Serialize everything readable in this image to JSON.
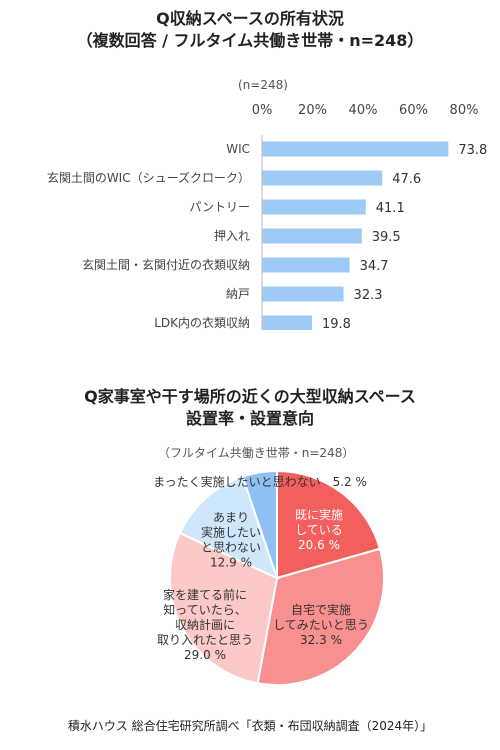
{
  "bar_chart": {
    "title_line1": "Q収納スペースの所有状況",
    "title_line2": "（複数回答 / フルタイム共働き世帯・n=248）",
    "n_note": "(n=248)"
  },
  "pie_chart": {
    "title_line1": "Q家事室や干す場所の近くの大型収納スペース",
    "title_line2": "設置率・設置意向",
    "n_note": "（フルタイム共働き世帯・n=248）"
  },
  "footer": "積水ハウス 総合住宅研究所調べ「衣類・布団収納調査（2024年）」",
  "chart_data": [
    {
      "type": "bar",
      "orientation": "horizontal",
      "categories": [
        "WIC",
        "玄関土間のWIC（シューズクローク）",
        "パントリー",
        "押入れ",
        "玄関土間・玄関付近の衣類収納",
        "納戸",
        "LDK内の衣類収納"
      ],
      "values": [
        73.8,
        47.6,
        41.1,
        39.5,
        34.7,
        32.3,
        19.8
      ],
      "value_labels": [
        "73.8",
        "47.6",
        "41.1",
        "39.5",
        "34.7",
        "32.3",
        "19.8"
      ],
      "xticks": [
        "0%",
        "20%",
        "40%",
        "60%",
        "80%"
      ],
      "xlim": [
        0,
        80
      ],
      "grid": false,
      "bar_color": "#9dcbf5"
    },
    {
      "type": "pie",
      "slices": [
        {
          "lines": [
            "既に実施",
            "している",
            "20.6 %"
          ],
          "value": 20.6,
          "color": "#f25f5c",
          "text_color": "#ffffff"
        },
        {
          "lines": [
            "自宅で実施",
            "してみたいと思う",
            "32.3 %"
          ],
          "value": 32.3,
          "color": "#f7908e",
          "text_color": "#333333"
        },
        {
          "lines": [
            "家を建てる前に",
            "知っていたら、",
            "収納計画に",
            "取り入れたと思う",
            "29.0 %"
          ],
          "value": 29.0,
          "color": "#fbc9c8",
          "text_color": "#333333"
        },
        {
          "lines": [
            "あまり",
            "実施したい",
            "と思わない",
            "12.9 %"
          ],
          "value": 12.9,
          "color": "#cfe7fb",
          "text_color": "#333333"
        },
        {
          "lines": [
            "まったく実施したいと思わない　5.2 %"
          ],
          "value": 5.2,
          "color": "#8fc0f3",
          "text_color": "#333333"
        }
      ]
    }
  ]
}
